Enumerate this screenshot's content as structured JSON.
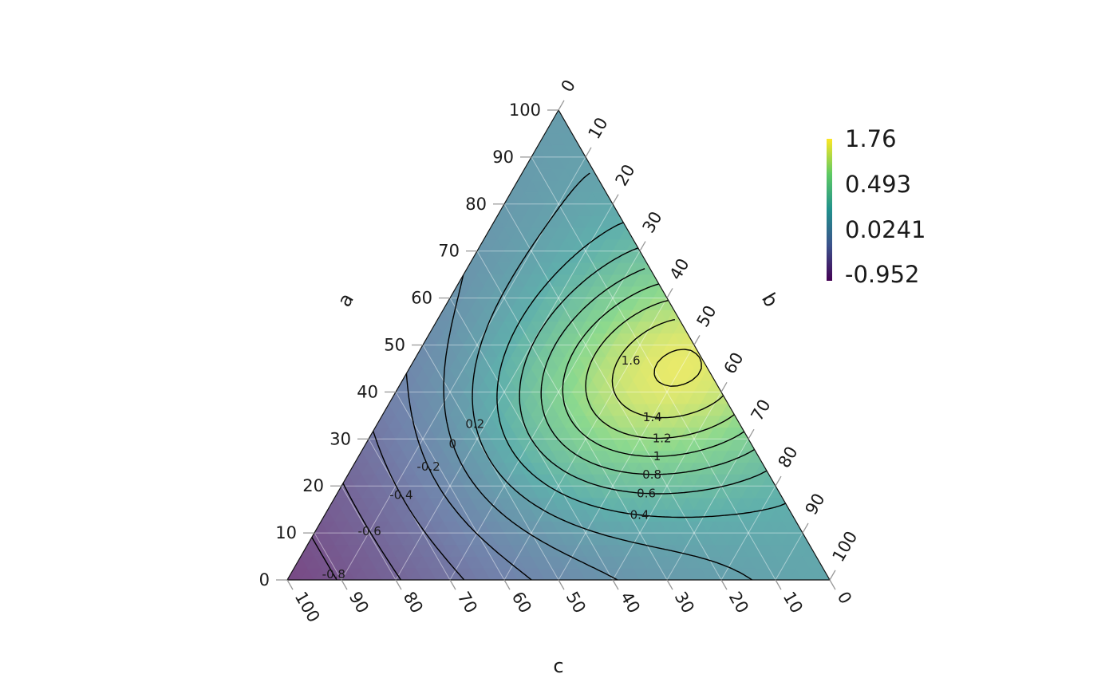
{
  "chart_data": {
    "type": "ternary-contour",
    "axes": {
      "a": {
        "title": "a",
        "ticks": [
          "0",
          "10",
          "20",
          "30",
          "40",
          "50",
          "60",
          "70",
          "80",
          "90",
          "100"
        ]
      },
      "b": {
        "title": "b",
        "ticks": [
          "0",
          "10",
          "20",
          "30",
          "40",
          "50",
          "60",
          "70",
          "80",
          "90",
          "100"
        ]
      },
      "c": {
        "title": "c",
        "ticks": [
          "100",
          "90",
          "80",
          "70",
          "60",
          "50",
          "40",
          "30",
          "20",
          "10",
          "0"
        ]
      }
    },
    "fill_range": [
      -0.952,
      1.76
    ],
    "colorscale": [
      "#440154",
      "#3b528b",
      "#21908c",
      "#5dc963",
      "#fde725"
    ],
    "legend": {
      "position": "right",
      "labels": [
        "1.76",
        "0.493",
        "0.0241",
        "-0.952"
      ]
    },
    "contour_levels": [
      -0.8,
      -0.6,
      -0.4,
      -0.2,
      0,
      0.2,
      0.4,
      0.6,
      0.8,
      1,
      1.2,
      1.4,
      1.6
    ],
    "contour_labels": [
      {
        "text": "-0.8",
        "level": -0.8
      },
      {
        "text": "-0.6",
        "level": -0.6
      },
      {
        "text": "-0.4",
        "level": -0.4
      },
      {
        "text": "-0.2",
        "level": -0.2
      },
      {
        "text": "0",
        "level": 0
      },
      {
        "text": "0.2",
        "level": 0.2
      },
      {
        "text": "0.4",
        "level": 0.4
      },
      {
        "text": "0.6",
        "level": 0.6
      },
      {
        "text": "0.8",
        "level": 0.8
      },
      {
        "text": "1",
        "level": 1
      },
      {
        "text": "1.2",
        "level": 1.2
      },
      {
        "text": "1.4",
        "level": 1.4
      },
      {
        "text": "1.6",
        "level": 1.6
      }
    ],
    "grid": true
  }
}
